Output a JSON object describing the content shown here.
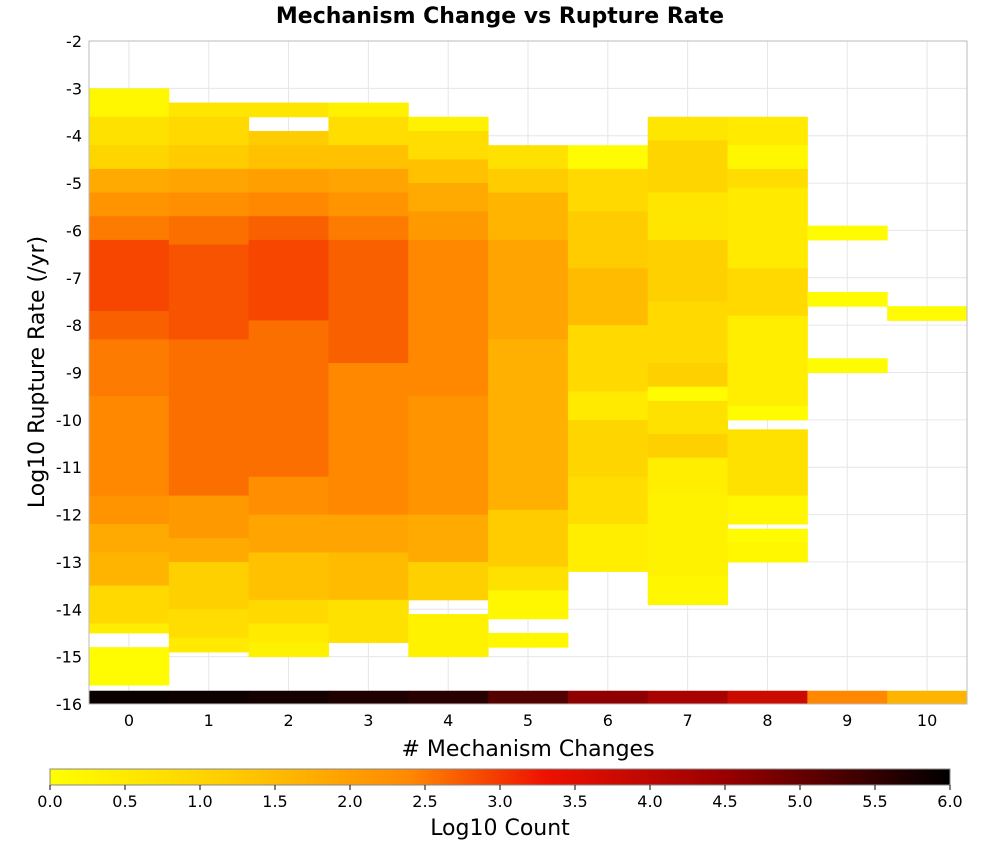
{
  "chart_data": {
    "type": "heatmap",
    "title": "Mechanism Change vs Rupture Rate",
    "xlabel": "# Mechanism Changes",
    "ylabel": "Log10 Rupture Rate (/yr)",
    "colorbar_label": "Log10 Count",
    "x_categories": [
      "0",
      "1",
      "2",
      "3",
      "4",
      "5",
      "6",
      "7",
      "8",
      "9",
      "10"
    ],
    "y_range": [
      -16,
      -2
    ],
    "y_ticks": [
      "-2",
      "-3",
      "-4",
      "-5",
      "-6",
      "-7",
      "-8",
      "-9",
      "-10",
      "-11",
      "-12",
      "-13",
      "-14",
      "-15",
      "-16"
    ],
    "bin_size": 0.28,
    "color_range": [
      0.0,
      6.0
    ],
    "colorbar_ticks": [
      "0.0",
      "0.5",
      "1.0",
      "1.5",
      "2.0",
      "2.5",
      "3.0",
      "3.5",
      "4.0",
      "4.5",
      "5.0",
      "5.5",
      "6.0"
    ],
    "colors": {
      "scale": [
        "#ffff00",
        "#ffcc00",
        "#ff8800",
        "#ee1100",
        "#990000",
        "#000000"
      ],
      "grid": "#e6e6e6",
      "frame": "#bbbbbb"
    },
    "grid": true,
    "columns": [
      {
        "x": 0,
        "bottom_count": 5.9,
        "bins": [
          [
            -3.0,
            -3.6,
            0.2
          ],
          [
            -3.6,
            -4.2,
            0.7
          ],
          [
            -4.2,
            -4.7,
            1.0
          ],
          [
            -4.7,
            -5.2,
            1.8
          ],
          [
            -5.2,
            -5.7,
            2.2
          ],
          [
            -5.7,
            -6.2,
            2.5
          ],
          [
            -6.2,
            -7.7,
            2.9
          ],
          [
            -7.7,
            -8.3,
            2.7
          ],
          [
            -8.3,
            -9.5,
            2.5
          ],
          [
            -9.5,
            -11.6,
            2.4
          ],
          [
            -11.6,
            -12.2,
            2.2
          ],
          [
            -12.2,
            -12.8,
            1.8
          ],
          [
            -12.8,
            -13.5,
            1.6
          ],
          [
            -13.5,
            -14.3,
            0.9
          ],
          [
            -14.3,
            -14.5,
            0.4
          ],
          [
            -14.8,
            -15.6,
            0.1
          ]
        ]
      },
      {
        "x": 1,
        "bottom_count": 5.85,
        "bins": [
          [
            -3.3,
            -3.6,
            0.6
          ],
          [
            -3.6,
            -4.2,
            0.9
          ],
          [
            -4.2,
            -4.7,
            1.2
          ],
          [
            -4.7,
            -5.2,
            1.9
          ],
          [
            -5.2,
            -5.7,
            2.3
          ],
          [
            -5.7,
            -6.3,
            2.6
          ],
          [
            -6.3,
            -8.3,
            2.8
          ],
          [
            -8.3,
            -11.6,
            2.6
          ],
          [
            -11.6,
            -12.5,
            2.1
          ],
          [
            -12.5,
            -13.0,
            1.8
          ],
          [
            -13.0,
            -14.0,
            1.1
          ],
          [
            -14.0,
            -14.6,
            0.8
          ],
          [
            -14.6,
            -14.9,
            0.5
          ]
        ]
      },
      {
        "x": 2,
        "bottom_count": 5.8,
        "bins": [
          [
            -3.3,
            -3.6,
            0.6
          ],
          [
            -3.9,
            -4.2,
            1.2
          ],
          [
            -4.2,
            -4.7,
            1.4
          ],
          [
            -4.7,
            -5.2,
            2.0
          ],
          [
            -5.2,
            -5.7,
            2.4
          ],
          [
            -5.7,
            -6.2,
            2.7
          ],
          [
            -6.2,
            -7.9,
            2.9
          ],
          [
            -7.9,
            -11.2,
            2.6
          ],
          [
            -11.2,
            -12.0,
            2.3
          ],
          [
            -12.0,
            -12.8,
            1.9
          ],
          [
            -12.8,
            -13.8,
            1.4
          ],
          [
            -13.8,
            -14.3,
            0.9
          ],
          [
            -14.3,
            -14.7,
            0.5
          ],
          [
            -14.7,
            -15.0,
            0.3
          ]
        ]
      },
      {
        "x": 3,
        "bottom_count": 5.7,
        "bins": [
          [
            -3.3,
            -3.6,
            0.3
          ],
          [
            -3.6,
            -4.2,
            0.8
          ],
          [
            -4.2,
            -4.7,
            1.4
          ],
          [
            -4.7,
            -5.2,
            1.9
          ],
          [
            -5.2,
            -5.7,
            2.2
          ],
          [
            -5.7,
            -6.2,
            2.5
          ],
          [
            -6.2,
            -8.8,
            2.7
          ],
          [
            -8.8,
            -12.0,
            2.4
          ],
          [
            -12.0,
            -12.8,
            1.9
          ],
          [
            -12.8,
            -13.8,
            1.5
          ],
          [
            -13.8,
            -14.7,
            0.7
          ]
        ]
      },
      {
        "x": 4,
        "bottom_count": 5.6,
        "bins": [
          [
            -3.6,
            -3.9,
            0.3
          ],
          [
            -3.9,
            -4.5,
            0.8
          ],
          [
            -4.5,
            -5.0,
            1.4
          ],
          [
            -5.0,
            -5.6,
            1.8
          ],
          [
            -5.6,
            -6.2,
            2.1
          ],
          [
            -6.2,
            -9.5,
            2.4
          ],
          [
            -9.5,
            -12.0,
            2.2
          ],
          [
            -12.0,
            -13.0,
            1.8
          ],
          [
            -13.0,
            -13.8,
            1.1
          ],
          [
            -14.1,
            -15.0,
            0.3
          ]
        ]
      },
      {
        "x": 5,
        "bottom_count": 5.2,
        "bins": [
          [
            -4.2,
            -4.7,
            0.7
          ],
          [
            -4.7,
            -5.2,
            1.2
          ],
          [
            -5.2,
            -6.2,
            1.6
          ],
          [
            -6.2,
            -8.3,
            1.9
          ],
          [
            -8.3,
            -11.9,
            1.7
          ],
          [
            -11.9,
            -13.1,
            1.2
          ],
          [
            -13.1,
            -13.6,
            0.7
          ],
          [
            -13.6,
            -14.2,
            0.2
          ],
          [
            -14.5,
            -14.8,
            0.2
          ]
        ]
      },
      {
        "x": 6,
        "bottom_count": 4.6,
        "bins": [
          [
            -4.2,
            -4.7,
            0.1
          ],
          [
            -4.7,
            -5.6,
            0.9
          ],
          [
            -5.6,
            -6.8,
            1.2
          ],
          [
            -6.8,
            -8.0,
            1.5
          ],
          [
            -8.0,
            -9.4,
            0.9
          ],
          [
            -9.4,
            -10.0,
            0.5
          ],
          [
            -10.0,
            -11.2,
            1.0
          ],
          [
            -11.2,
            -12.2,
            0.8
          ],
          [
            -12.2,
            -13.2,
            0.4
          ]
        ]
      },
      {
        "x": 7,
        "bottom_count": 4.3,
        "bins": [
          [
            -3.6,
            -4.1,
            0.6
          ],
          [
            -4.1,
            -5.2,
            1.0
          ],
          [
            -5.2,
            -6.2,
            0.6
          ],
          [
            -6.2,
            -7.5,
            1.1
          ],
          [
            -7.5,
            -8.8,
            0.9
          ],
          [
            -8.8,
            -9.3,
            1.1
          ],
          [
            -9.3,
            -9.6,
            0.1
          ],
          [
            -9.6,
            -10.3,
            0.7
          ],
          [
            -10.3,
            -10.8,
            1.1
          ],
          [
            -10.8,
            -11.5,
            0.4
          ],
          [
            -11.5,
            -13.3,
            0.3
          ],
          [
            -13.3,
            -13.9,
            0.2
          ]
        ]
      },
      {
        "x": 8,
        "bottom_count": 3.8,
        "bins": [
          [
            -3.6,
            -4.2,
            0.5
          ],
          [
            -4.2,
            -4.7,
            0.2
          ],
          [
            -4.7,
            -5.1,
            0.8
          ],
          [
            -5.1,
            -6.8,
            0.5
          ],
          [
            -6.8,
            -7.8,
            0.9
          ],
          [
            -7.8,
            -9.7,
            0.4
          ],
          [
            -9.7,
            -10.0,
            0.1
          ],
          [
            -10.2,
            -11.6,
            0.7
          ],
          [
            -11.6,
            -12.2,
            0.2
          ],
          [
            -12.3,
            -12.6,
            0.1
          ],
          [
            -12.6,
            -13.0,
            0.2
          ]
        ]
      },
      {
        "x": 9,
        "bottom_count": 2.4,
        "bins": [
          [
            -5.9,
            -6.2,
            0.1
          ],
          [
            -7.3,
            -7.6,
            0.1
          ],
          [
            -8.7,
            -9.0,
            0.1
          ]
        ]
      },
      {
        "x": 10,
        "bottom_count": 1.6,
        "bins": [
          [
            -7.6,
            -7.9,
            0.1
          ]
        ]
      }
    ]
  }
}
